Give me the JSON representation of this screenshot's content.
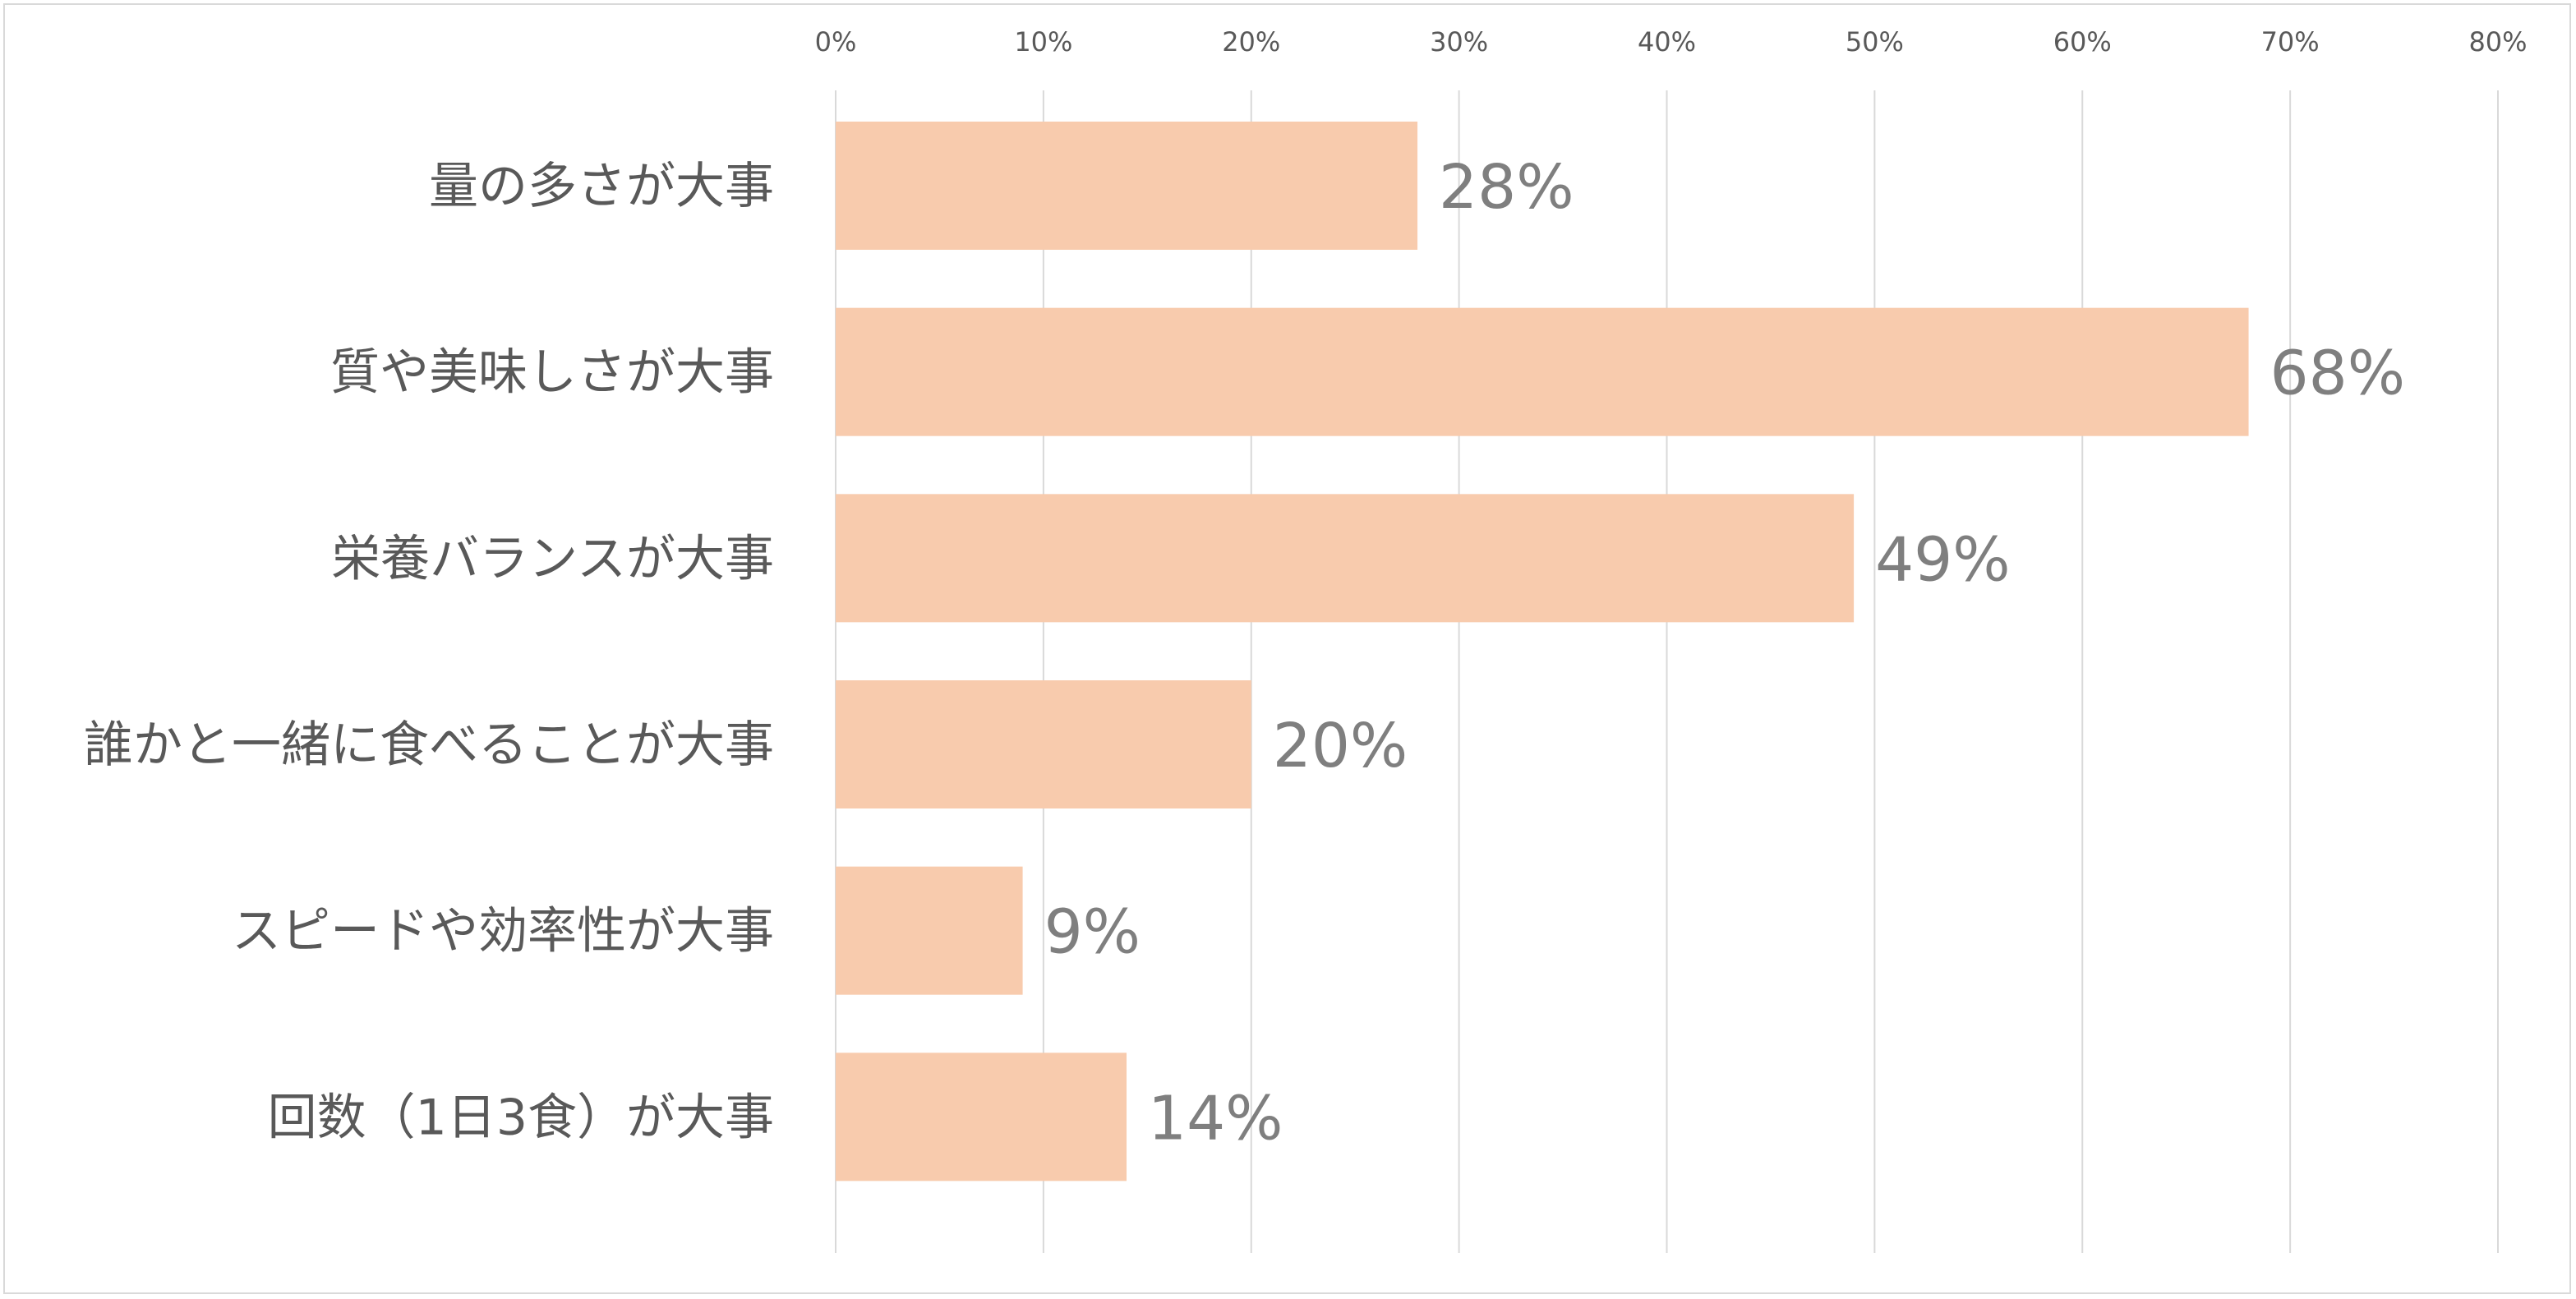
{
  "chart_data": {
    "type": "bar",
    "orientation": "horizontal",
    "categories": [
      "量の多さが大事",
      "質や美味しさが大事",
      "栄養バランスが大事",
      "誰かと一緒に食べることが大事",
      "スピードや効率性が大事",
      "回数（1日3食）が大事"
    ],
    "values": [
      0.28,
      0.68,
      0.49,
      0.2,
      0.09,
      0.14
    ],
    "data_labels": [
      "28%",
      "68%",
      "49%",
      "20%",
      "9%",
      "14%"
    ],
    "xlim": [
      0,
      0.8
    ],
    "ticks": [
      "0%",
      "10%",
      "20%",
      "30%",
      "40%",
      "50%",
      "60%",
      "70%",
      "80%"
    ],
    "tick_values": [
      0,
      0.1,
      0.2,
      0.3,
      0.4,
      0.5,
      0.6,
      0.7,
      0.8
    ],
    "axis_position": "top",
    "grid": true,
    "legend": "none",
    "title": "",
    "xlabel": "",
    "ylabel": ""
  },
  "colors": {
    "bar": "#f8cbad",
    "grid": "#d9d9d9",
    "tick_text": "#595959",
    "category_text": "#595959",
    "data_label_text": "#7f7f7f"
  }
}
